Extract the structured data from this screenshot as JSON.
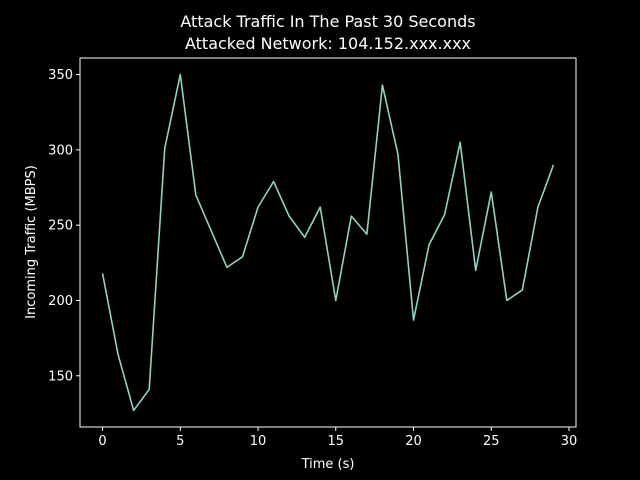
{
  "chart_data": {
    "type": "line",
    "title": "Attack Traffic In The Past 30 Seconds",
    "subtitle": "Attacked Network: 104.152.xxx.xxx",
    "xlabel": "Time (s)",
    "ylabel": "Incoming Traffic (MBPS)",
    "x": [
      0,
      1,
      2,
      3,
      4,
      5,
      6,
      7,
      8,
      9,
      10,
      11,
      12,
      13,
      14,
      15,
      16,
      17,
      18,
      19,
      20,
      21,
      22,
      23,
      24,
      25,
      26,
      27,
      28,
      29
    ],
    "values": [
      218,
      164,
      127,
      141,
      301,
      350,
      270,
      246,
      222,
      229,
      262,
      279,
      256,
      242,
      262,
      200,
      256,
      244,
      343,
      297,
      187,
      237,
      257,
      305,
      220,
      272,
      200,
      207,
      262,
      290
    ],
    "color": "#8dd3c7",
    "xlim": [
      -1.45,
      30.45
    ],
    "xticks": [
      0,
      5,
      10,
      15,
      20,
      25,
      30
    ],
    "ylim": [
      116,
      361
    ],
    "yticks": [
      150,
      200,
      250,
      300,
      350
    ],
    "grid": false
  }
}
